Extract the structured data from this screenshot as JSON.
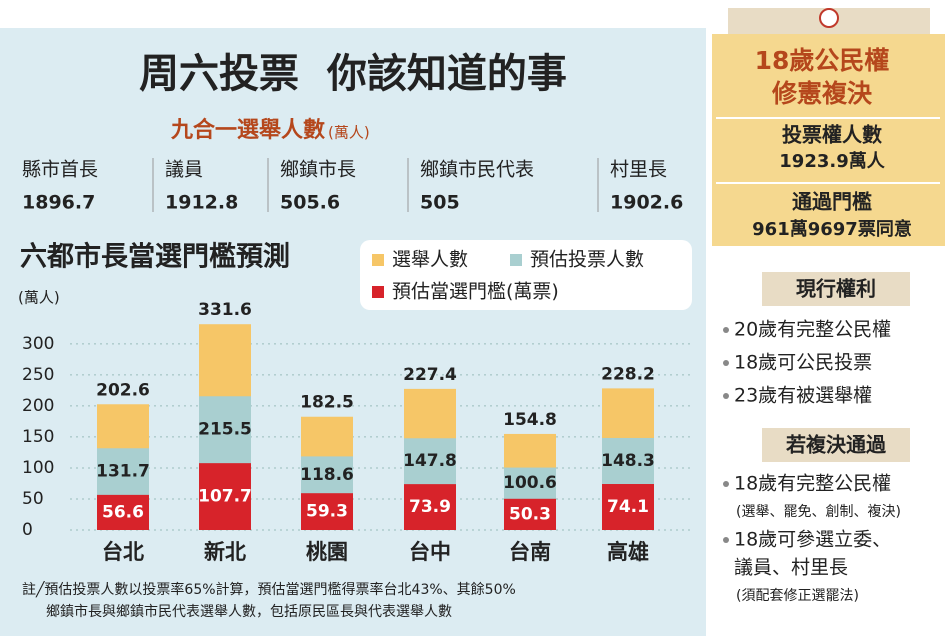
{
  "header": {
    "title": "周六投票  你該知道的事"
  },
  "stats": {
    "title": "九合一選舉人數",
    "unit": "(萬人)",
    "items": [
      {
        "label": "縣市首長",
        "value": 1896.7
      },
      {
        "label": "議員",
        "value": 1912.8
      },
      {
        "label": "鄉鎮市長",
        "value": 505.6
      },
      {
        "label": "鄉鎮市民代表",
        "value": 505
      },
      {
        "label": "村里長",
        "value": 1902.6
      }
    ]
  },
  "chart_data": {
    "type": "bar",
    "layout": "overlap",
    "title": "六都市長當選門檻預測",
    "y_label": "(萬人)",
    "categories": [
      "台北",
      "新北",
      "桃園",
      "台中",
      "台南",
      "高雄"
    ],
    "series": [
      {
        "name": "選舉人數",
        "color": "#f6c667",
        "values": [
          202.6,
          331.6,
          182.5,
          227.4,
          154.8,
          228.2
        ]
      },
      {
        "name": "預估投票人數",
        "color": "#a9cfd0",
        "values": [
          131.7,
          215.5,
          118.6,
          147.8,
          100.6,
          148.3
        ]
      },
      {
        "name": "預估當選門檻(萬票)",
        "color": "#d7232a",
        "values": [
          56.6,
          107.7,
          59.3,
          73.9,
          50.3,
          74.1
        ]
      }
    ],
    "ylim": [
      0,
      340
    ],
    "yticks": [
      0,
      50,
      100,
      150,
      200,
      250,
      300
    ],
    "grid": true
  },
  "notes": [
    "註╱預估投票人數以投票率65%計算，預估當選門檻得票率台北43%、其餘50%",
    "鄉鎮市長與鄉鎮市民代表選舉人數，包括原民區長與代表選舉人數"
  ],
  "sidebar": {
    "title": [
      "18歲公民權",
      "修憲複決"
    ],
    "voters_label": "投票權人數",
    "voters_value": "1923.9萬人",
    "threshold_label": "通過門檻",
    "threshold_value": "961萬9697票同意",
    "current": {
      "title": "現行權利",
      "items": [
        "20歲有完整公民權",
        "18歲可公民投票",
        "23歲有被選舉權"
      ]
    },
    "if_passed": {
      "title": "若複決通過",
      "items": [
        "18歲有完整公民權",
        "(選舉、罷免、創制、複決)",
        "18歲可參選立委、",
        "議員、村里長",
        "(須配套修正選罷法)"
      ]
    }
  }
}
